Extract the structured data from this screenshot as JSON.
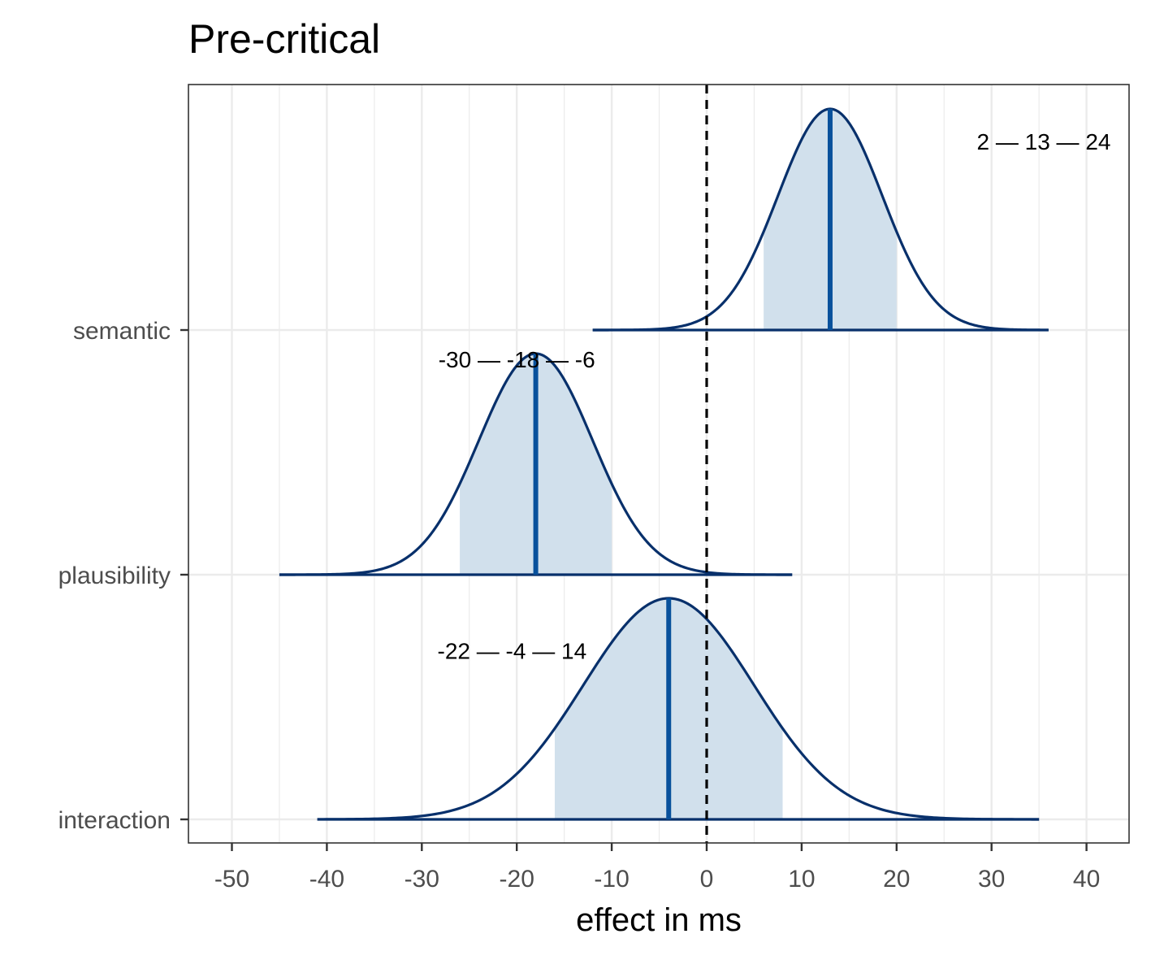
{
  "chart_data": {
    "type": "ridgeline-density",
    "title": "Pre-critical",
    "xlabel": "effect in ms",
    "ylabel": "",
    "xlim": [
      -55,
      44
    ],
    "x_ticks": [
      -50,
      -40,
      -30,
      -20,
      -10,
      0,
      10,
      20,
      30,
      40
    ],
    "x_tick_labels": [
      "-50",
      "-40",
      "-30",
      "-20",
      "-10",
      "0",
      "10",
      "20",
      "30",
      "40"
    ],
    "grid": true,
    "reference_line": {
      "x": 0,
      "style": "dashed"
    },
    "colors": {
      "outline": "#08306b",
      "fill": "#d1e0ec",
      "median_line": "#08519c",
      "reference": "#000000",
      "grid": "#ebebeb"
    },
    "series": [
      {
        "name": "semantic",
        "median": 13,
        "interval_low": 6,
        "interval_high": 20,
        "range": [
          -12,
          36
        ],
        "sd": 5.5,
        "annotation": "2 — 13 — 24",
        "annotation_x": 35.5,
        "annotation_offset": 0.77
      },
      {
        "name": "plausibility",
        "median": -18,
        "interval_low": -26,
        "interval_high": -10,
        "range": [
          -45,
          9
        ],
        "sd": 6,
        "annotation": "-30 — -18 — -6",
        "annotation_x": -20,
        "annotation_offset": 0.88
      },
      {
        "name": "interaction",
        "median": -4,
        "interval_low": -16,
        "interval_high": 8,
        "range": [
          -41,
          35
        ],
        "sd": 9,
        "annotation": "-22 — -4 — 14",
        "annotation_x": -20.5,
        "annotation_offset": 0.69
      }
    ]
  }
}
